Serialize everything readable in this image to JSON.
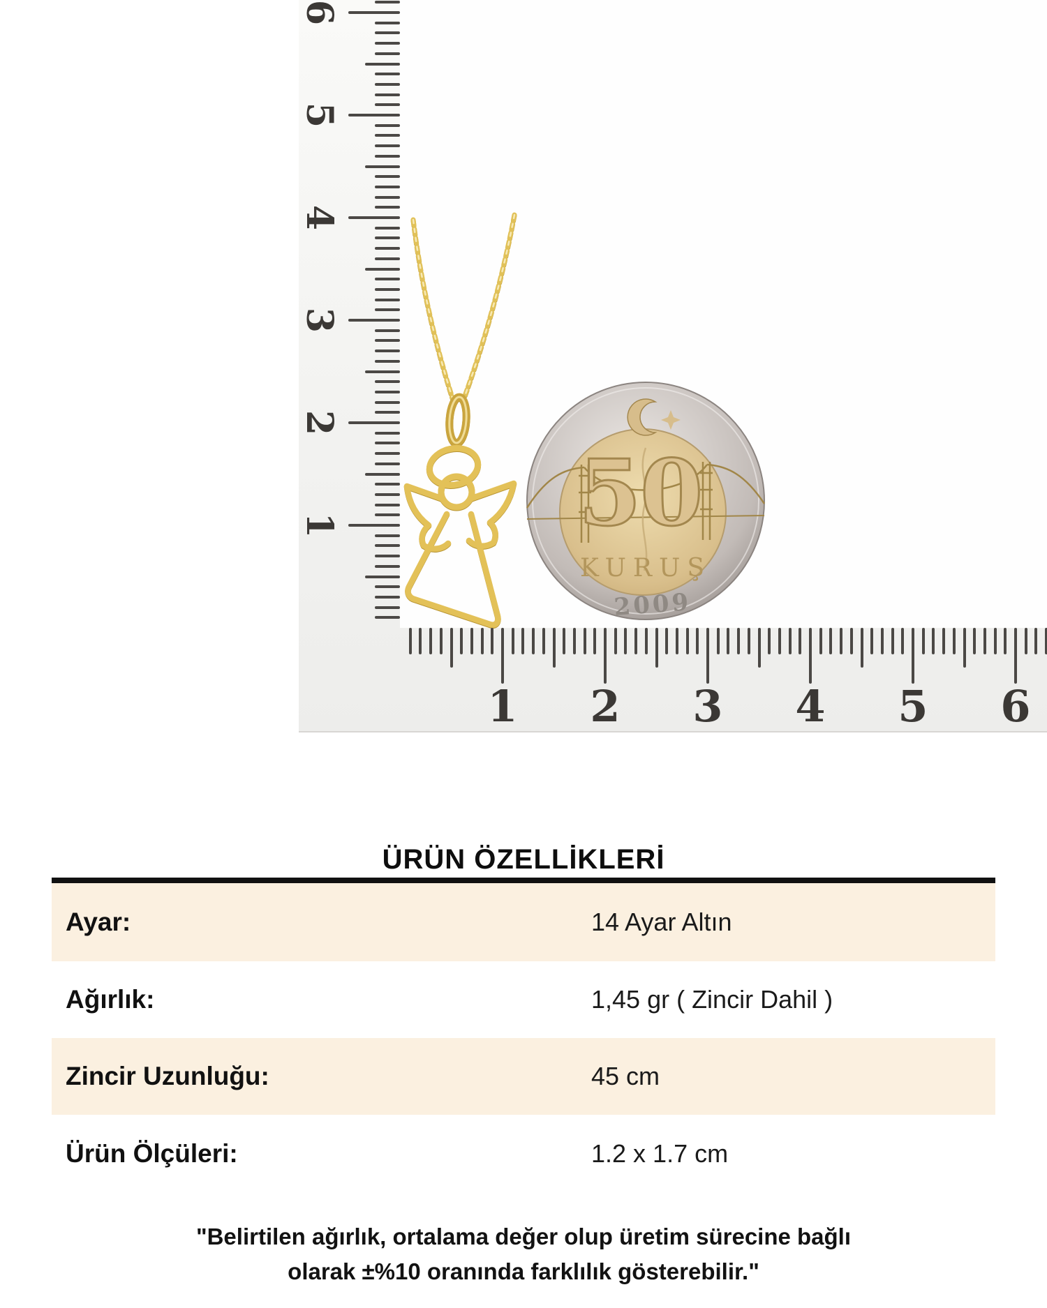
{
  "photo": {
    "ruler": {
      "h_numbers": [
        "1",
        "2",
        "3",
        "4",
        "5",
        "6"
      ],
      "v_numbers": [
        "6",
        "5",
        "4",
        "3",
        "2",
        "1"
      ]
    },
    "coin": {
      "value": "50",
      "currency": "KURUŞ",
      "year": "2009"
    }
  },
  "specs": {
    "title": "ÜRÜN ÖZELLİKLERİ",
    "rows": [
      {
        "label": "Ayar:",
        "value": "14 Ayar Altın"
      },
      {
        "label": "Ağırlık:",
        "value": "1,45 gr ( Zincir Dahil )"
      },
      {
        "label": "Zincir Uzunluğu:",
        "value": "45 cm"
      },
      {
        "label": "Ürün Ölçüleri:",
        "value": "1.2 x 1.7 cm"
      }
    ],
    "disclaimer_line1": "\"Belirtilen ağırlık, ortalama değer olup üretim sürecine bağlı",
    "disclaimer_line2": "olarak ±%10 oranında farklılık gösterebilir.\""
  },
  "colors": {
    "cream_row": "#fbf0e0",
    "gold": "#e3c158",
    "coin_ring_silver": "#b5aeaa",
    "coin_center_gold": "#d9bf8c",
    "tick": "#4b4845"
  }
}
